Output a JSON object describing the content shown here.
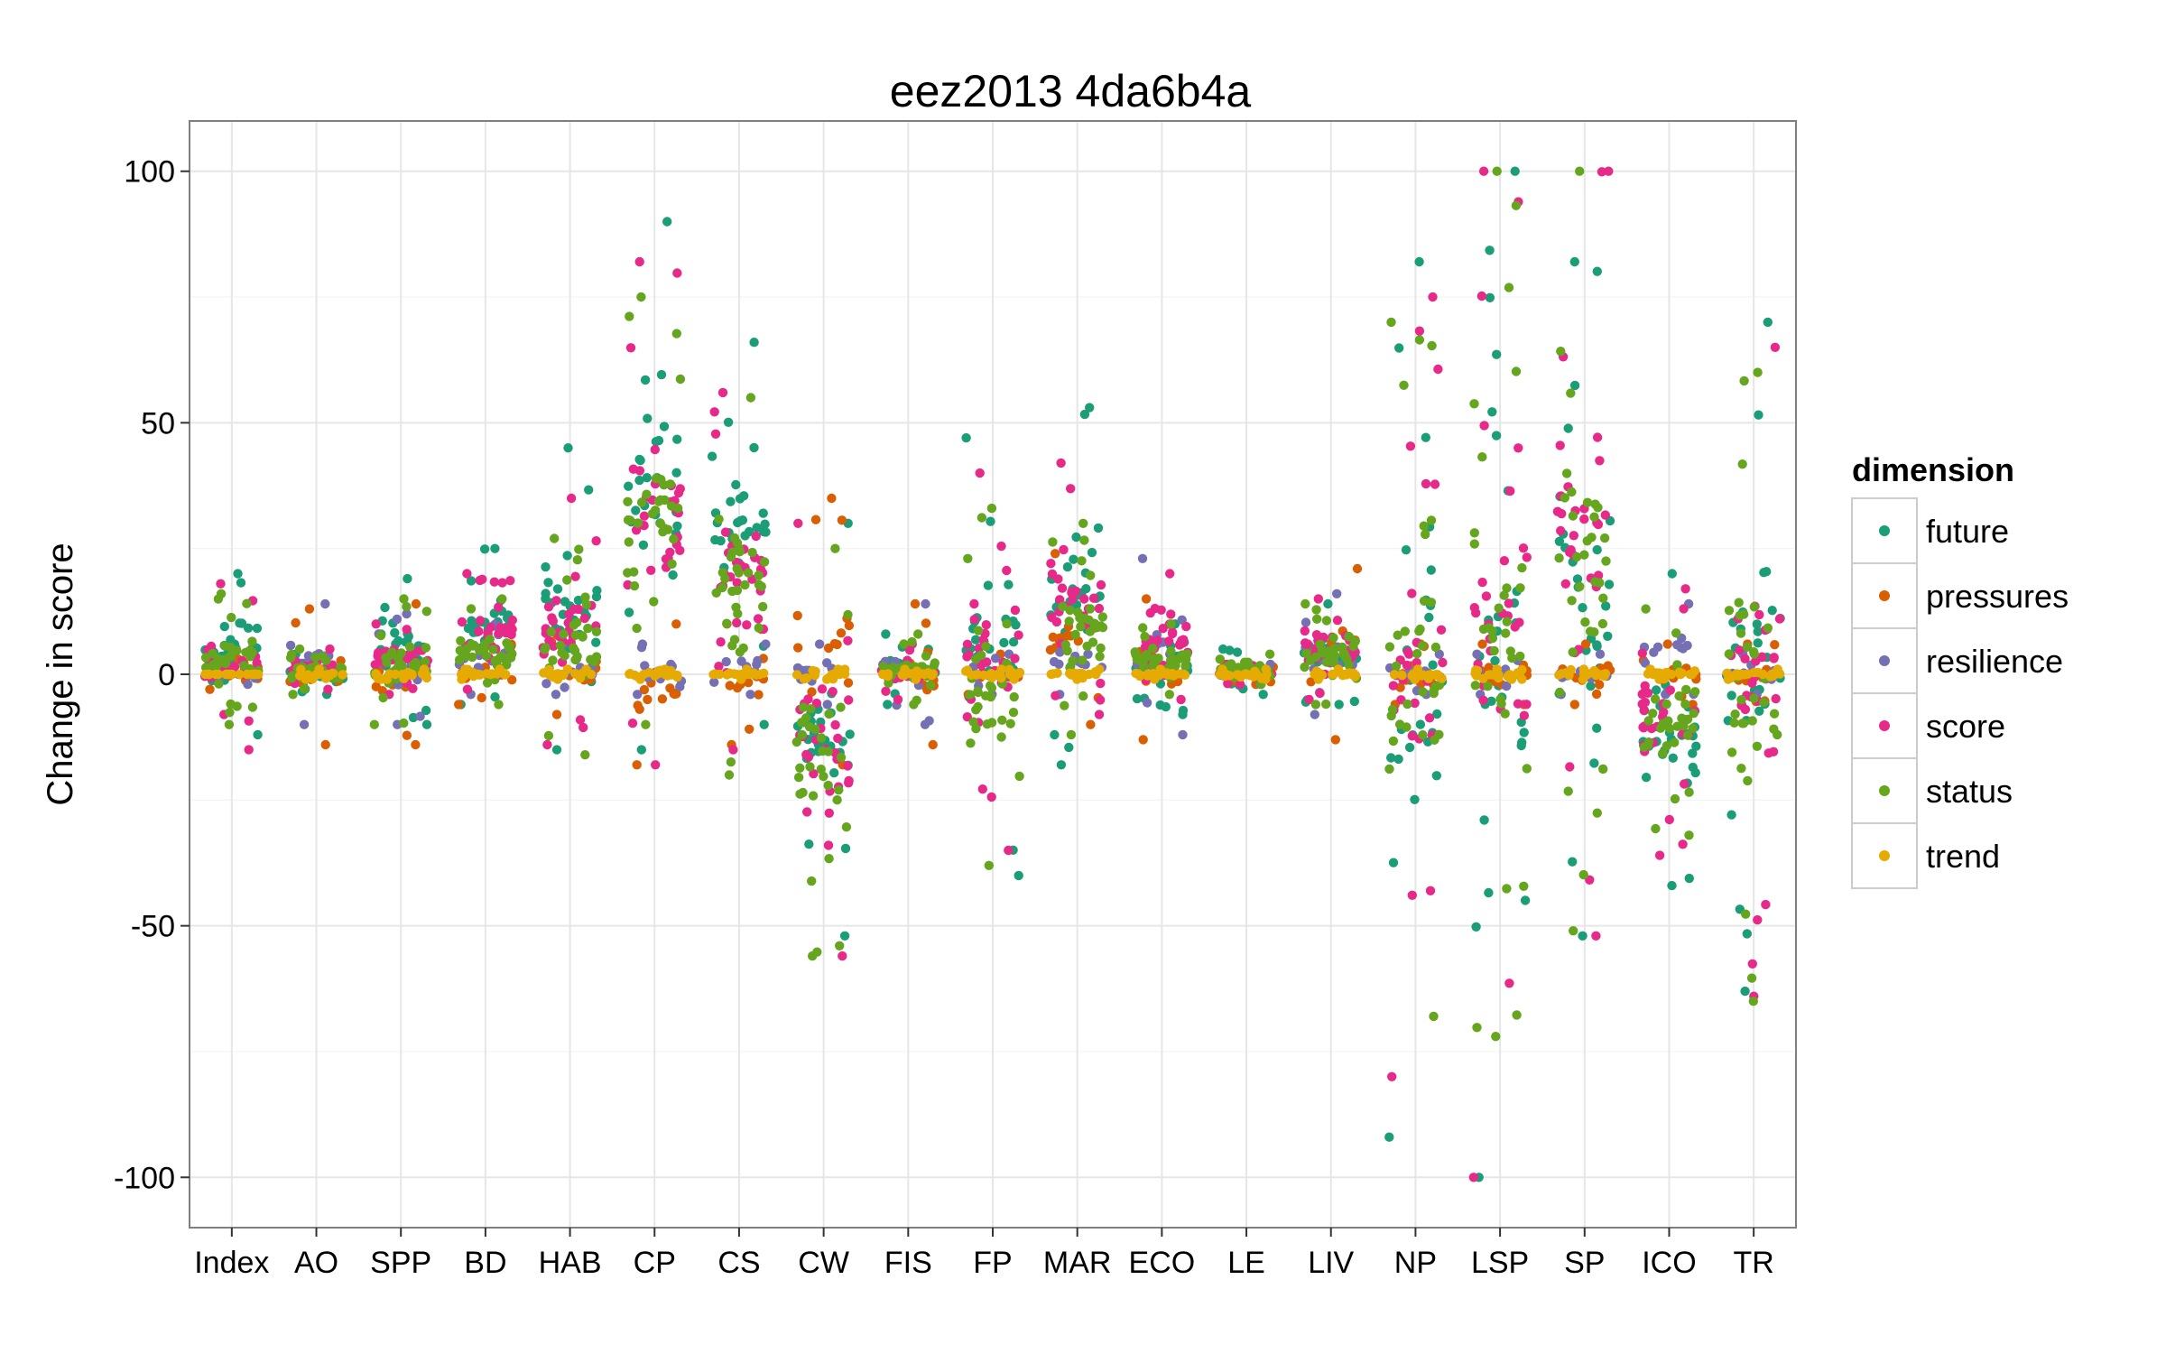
{
  "chart_data": {
    "type": "scatter",
    "title": "eez2013 4da6b4a",
    "xlabel": "",
    "ylabel": "Change in score",
    "categories": [
      "Index",
      "AO",
      "SPP",
      "BD",
      "HAB",
      "CP",
      "CS",
      "CW",
      "FIS",
      "FP",
      "MAR",
      "ECO",
      "LE",
      "LIV",
      "NP",
      "LSP",
      "SP",
      "ICO",
      "TR"
    ],
    "ylim": [
      -110,
      110
    ],
    "yticks": [
      100,
      50,
      0,
      -50,
      -100
    ],
    "ytick_labels": [
      "100",
      "50",
      "0",
      "-50",
      "-100"
    ],
    "grid": true,
    "jitter": "horizontal, categorical x",
    "legend": {
      "title": "dimension",
      "placement": "right",
      "entries": [
        "future",
        "pressures",
        "resilience",
        "score",
        "status",
        "trend"
      ]
    },
    "colors": {
      "future": "#1b9e77",
      "pressures": "#d95f02",
      "resilience": "#7570b3",
      "score": "#e7298a",
      "status": "#66a61e",
      "trend": "#e6ab02"
    },
    "series": [
      {
        "name": "future",
        "approx_range": [
          [
            "Index",
            -12,
            20
          ],
          [
            "AO",
            -4,
            4
          ],
          [
            "SPP",
            -10,
            19
          ],
          [
            "BD",
            -6,
            25
          ],
          [
            "HAB",
            -15,
            45
          ],
          [
            "CP",
            -15,
            90
          ],
          [
            "CS",
            -10,
            66
          ],
          [
            "CW",
            -52,
            30
          ],
          [
            "FIS",
            -6,
            8
          ],
          [
            "FP",
            -40,
            47
          ],
          [
            "MAR",
            -18,
            53
          ],
          [
            "ECO",
            -8,
            10
          ],
          [
            "LE",
            -4,
            5
          ],
          [
            "LIV",
            -6,
            14
          ],
          [
            "NP",
            -92,
            82
          ],
          [
            "LSP",
            -100,
            100
          ],
          [
            "SP",
            -52,
            82
          ],
          [
            "ICO",
            -42,
            20
          ],
          [
            "TR",
            -63,
            70
          ]
        ]
      },
      {
        "name": "pressures",
        "approx_range": [
          [
            "Index",
            -3,
            3
          ],
          [
            "AO",
            -14,
            13
          ],
          [
            "SPP",
            -14,
            14
          ],
          [
            "BD",
            -6,
            6
          ],
          [
            "HAB",
            -8,
            8
          ],
          [
            "CP",
            -18,
            10
          ],
          [
            "CS",
            -14,
            10
          ],
          [
            "CW",
            -18,
            35
          ],
          [
            "FIS",
            -14,
            14
          ],
          [
            "FP",
            -4,
            4
          ],
          [
            "MAR",
            -10,
            24
          ],
          [
            "ECO",
            -13,
            15
          ],
          [
            "LE",
            -2,
            2
          ],
          [
            "LIV",
            -13,
            21
          ],
          [
            "NP",
            -6,
            6
          ],
          [
            "LSP",
            -6,
            6
          ],
          [
            "SP",
            -6,
            6
          ],
          [
            "ICO",
            -6,
            6
          ],
          [
            "TR",
            -6,
            6
          ]
        ]
      },
      {
        "name": "resilience",
        "approx_range": [
          [
            "Index",
            -2,
            2
          ],
          [
            "AO",
            -10,
            14
          ],
          [
            "SPP",
            -10,
            12
          ],
          [
            "BD",
            -4,
            10
          ],
          [
            "HAB",
            -4,
            6
          ],
          [
            "CP",
            -4,
            6
          ],
          [
            "CS",
            -4,
            6
          ],
          [
            "CW",
            -6,
            6
          ],
          [
            "FIS",
            -10,
            14
          ],
          [
            "FP",
            -4,
            4
          ],
          [
            "MAR",
            -4,
            10
          ],
          [
            "ECO",
            -12,
            23
          ],
          [
            "LE",
            -2,
            2
          ],
          [
            "LIV",
            -8,
            16
          ],
          [
            "NP",
            -4,
            4
          ],
          [
            "LSP",
            -4,
            4
          ],
          [
            "SP",
            -4,
            4
          ],
          [
            "ICO",
            -4,
            14
          ],
          [
            "TR",
            -4,
            4
          ]
        ]
      },
      {
        "name": "score",
        "approx_range": [
          [
            "Index",
            -15,
            18
          ],
          [
            "AO",
            -3,
            5
          ],
          [
            "SPP",
            -4,
            10
          ],
          [
            "BD",
            -3,
            20
          ],
          [
            "HAB",
            -14,
            35
          ],
          [
            "CP",
            -18,
            82
          ],
          [
            "CS",
            -15,
            56
          ],
          [
            "CW",
            -56,
            30
          ],
          [
            "FIS",
            -5,
            6
          ],
          [
            "FP",
            -35,
            40
          ],
          [
            "MAR",
            -8,
            42
          ],
          [
            "ECO",
            -5,
            20
          ],
          [
            "LE",
            -2,
            2
          ],
          [
            "LIV",
            -5,
            15
          ],
          [
            "NP",
            -80,
            75
          ],
          [
            "LSP",
            -100,
            100
          ],
          [
            "SP",
            -52,
            100
          ],
          [
            "ICO",
            -36,
            17
          ],
          [
            "TR",
            -64,
            65
          ]
        ]
      },
      {
        "name": "status",
        "approx_range": [
          [
            "Index",
            -10,
            16
          ],
          [
            "AO",
            -4,
            5
          ],
          [
            "SPP",
            -10,
            15
          ],
          [
            "BD",
            -6,
            15
          ],
          [
            "HAB",
            -16,
            27
          ],
          [
            "CP",
            -10,
            75
          ],
          [
            "CS",
            -20,
            55
          ],
          [
            "CW",
            -56,
            25
          ],
          [
            "FIS",
            -6,
            8
          ],
          [
            "FP",
            -38,
            33
          ],
          [
            "MAR",
            -12,
            30
          ],
          [
            "ECO",
            -4,
            10
          ],
          [
            "LE",
            -2,
            4
          ],
          [
            "LIV",
            -6,
            14
          ],
          [
            "NP",
            -68,
            70
          ],
          [
            "LSP",
            -72,
            100
          ],
          [
            "SP",
            -51,
            100
          ],
          [
            "ICO",
            -32,
            13
          ],
          [
            "TR",
            -65,
            60
          ]
        ]
      },
      {
        "name": "trend",
        "approx_range": [
          [
            "Index",
            0,
            0
          ],
          [
            "AO",
            -1,
            1
          ],
          [
            "SPP",
            -1,
            1
          ],
          [
            "BD",
            -1,
            1
          ],
          [
            "HAB",
            -1,
            1
          ],
          [
            "CP",
            -1,
            1
          ],
          [
            "CS",
            -1,
            1
          ],
          [
            "CW",
            -1,
            1
          ],
          [
            "FIS",
            -1,
            1
          ],
          [
            "FP",
            -1,
            1
          ],
          [
            "MAR",
            -1,
            1
          ],
          [
            "ECO",
            -1,
            1
          ],
          [
            "LE",
            -1,
            1
          ],
          [
            "LIV",
            -1,
            1
          ],
          [
            "NP",
            -1,
            1
          ],
          [
            "LSP",
            -1,
            1
          ],
          [
            "SP",
            -1,
            1
          ],
          [
            "ICO",
            -1,
            1
          ],
          [
            "TR",
            -1,
            1
          ]
        ]
      }
    ]
  }
}
